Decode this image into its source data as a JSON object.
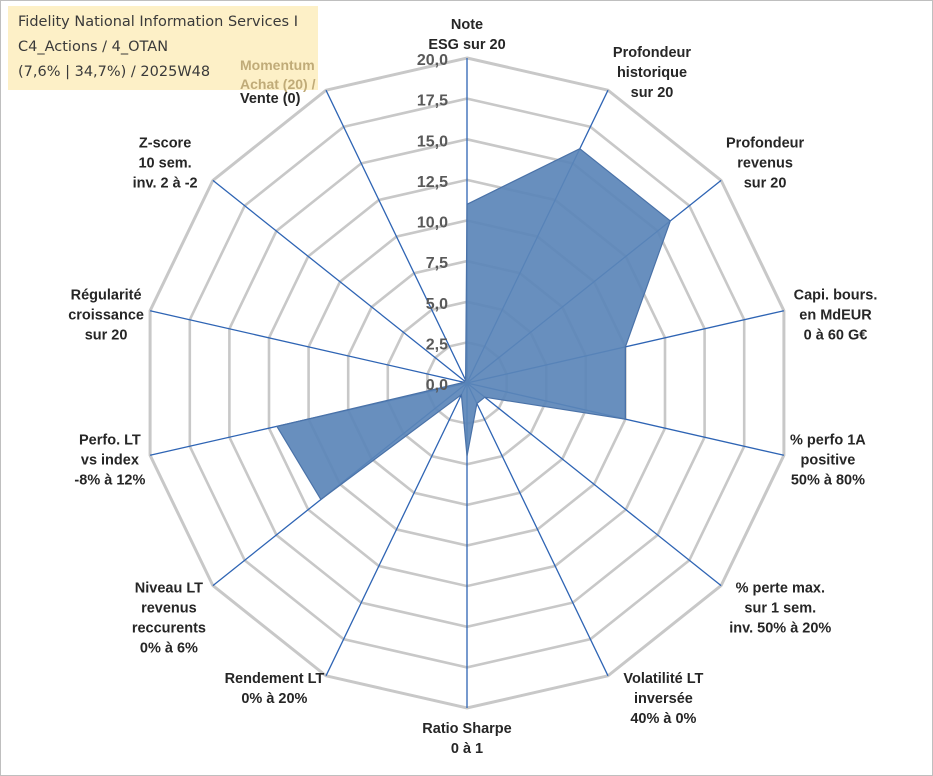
{
  "info": {
    "line1": "Fidelity National Information Services I",
    "line2": "C4_Actions / 4_OTAN",
    "line3": "(7,6% | 34,7%) / 2025W48",
    "momentum_line1": "Momentum",
    "momentum_line2": "Achat (20) /",
    "momentum_line3": "Vente (0)"
  },
  "colors": {
    "grid": "#c8c8c8",
    "spoke": "#2e64b4",
    "fill": "#5b85b8",
    "stroke": "#4a72a8",
    "infobox": "#fdf0c7"
  },
  "chart_data": {
    "type": "radar",
    "title": "",
    "rlim": [
      0,
      20
    ],
    "ticks": [
      "0,0",
      "2,5",
      "5,0",
      "7,5",
      "10,0",
      "12,5",
      "15,0",
      "17,5",
      "20,0"
    ],
    "axes": [
      {
        "label": [
          "Note",
          "ESG sur 20"
        ],
        "value": 11.0
      },
      {
        "label": [
          "Profondeur",
          "historique",
          "sur 20"
        ],
        "value": 16.0
      },
      {
        "label": [
          "Profondeur",
          "revenus",
          "sur 20"
        ],
        "value": 16.0
      },
      {
        "label": [
          "Capi. bours.",
          "en MdEUR",
          "0 à 60 G€"
        ],
        "value": 10.0
      },
      {
        "label": [
          "% perfo 1A",
          "positive",
          "50% à 80%"
        ],
        "value": 10.0
      },
      {
        "label": [
          "% perte max.",
          "sur 1 sem.",
          "inv. 50% à 20%"
        ],
        "value": 1.4
      },
      {
        "label": [
          "Volatilité LT",
          "inversée",
          "40% à 0%"
        ],
        "value": 1.4
      },
      {
        "label": [
          "Ratio Sharpe",
          "0 à 1"
        ],
        "value": 4.5
      },
      {
        "label": [
          "Rendement LT",
          "0% à 20%"
        ],
        "value": 0.8
      },
      {
        "label": [
          "Niveau LT",
          "revenus",
          "reccurents",
          "0% à 6%"
        ],
        "value": 11.5
      },
      {
        "label": [
          "Perfo. LT",
          "vs index",
          "-8% à 12%"
        ],
        "value": 12.0
      },
      {
        "label": [
          "Régularité",
          "croissance",
          "sur 20"
        ],
        "value": 0.2
      },
      {
        "label": [
          "Z-score",
          "10 sem.",
          "inv. 2 à -2"
        ],
        "value": 0.2
      },
      {
        "label": [
          "Momentum",
          "Achat (20) /",
          "Vente (0)"
        ],
        "value": 0.2
      }
    ]
  }
}
